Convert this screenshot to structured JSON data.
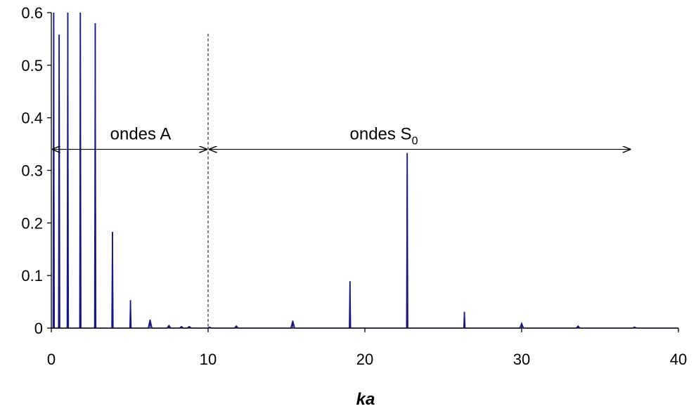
{
  "chart_data": {
    "type": "line",
    "xlabel": "ka",
    "ylabel": "",
    "xlim": [
      0,
      40
    ],
    "ylim": [
      0,
      0.6
    ],
    "xticks": [
      "0",
      "10",
      "20",
      "30",
      "40"
    ],
    "yticks": [
      "0",
      "0.1",
      "0.2",
      "0.3",
      "0.4",
      "0.5",
      "0.6"
    ],
    "grid": false,
    "line_color": "#1a1a7a",
    "series": [
      {
        "peaks": [
          {
            "x": 0.15,
            "y": 0.6
          },
          {
            "x": 0.5,
            "y": 0.558
          },
          {
            "x": 1.05,
            "y": 0.6
          },
          {
            "x": 1.85,
            "y": 0.6
          },
          {
            "x": 2.8,
            "y": 0.58
          },
          {
            "x": 3.9,
            "y": 0.183
          },
          {
            "x": 5.05,
            "y": 0.053
          },
          {
            "x": 6.3,
            "y": 0.016
          },
          {
            "x": 7.5,
            "y": 0.005
          },
          {
            "x": 8.3,
            "y": 0.003
          },
          {
            "x": 8.8,
            "y": 0.003
          },
          {
            "x": 10.1,
            "y": 0.002
          },
          {
            "x": 11.8,
            "y": 0.004
          },
          {
            "x": 15.4,
            "y": 0.014
          },
          {
            "x": 19.05,
            "y": 0.089
          },
          {
            "x": 22.7,
            "y": 0.333
          },
          {
            "x": 26.35,
            "y": 0.031
          },
          {
            "x": 30.0,
            "y": 0.009
          },
          {
            "x": 33.6,
            "y": 0.004
          },
          {
            "x": 37.2,
            "y": 0.002
          }
        ]
      }
    ],
    "annotations": [
      {
        "text": "ondes A",
        "x_from": 0,
        "x_to": 10
      },
      {
        "text": "ondes S",
        "subscript": "0",
        "x_from": 10,
        "x_to": 37
      }
    ],
    "vline_x": 10,
    "arrow_y": 0.34
  }
}
